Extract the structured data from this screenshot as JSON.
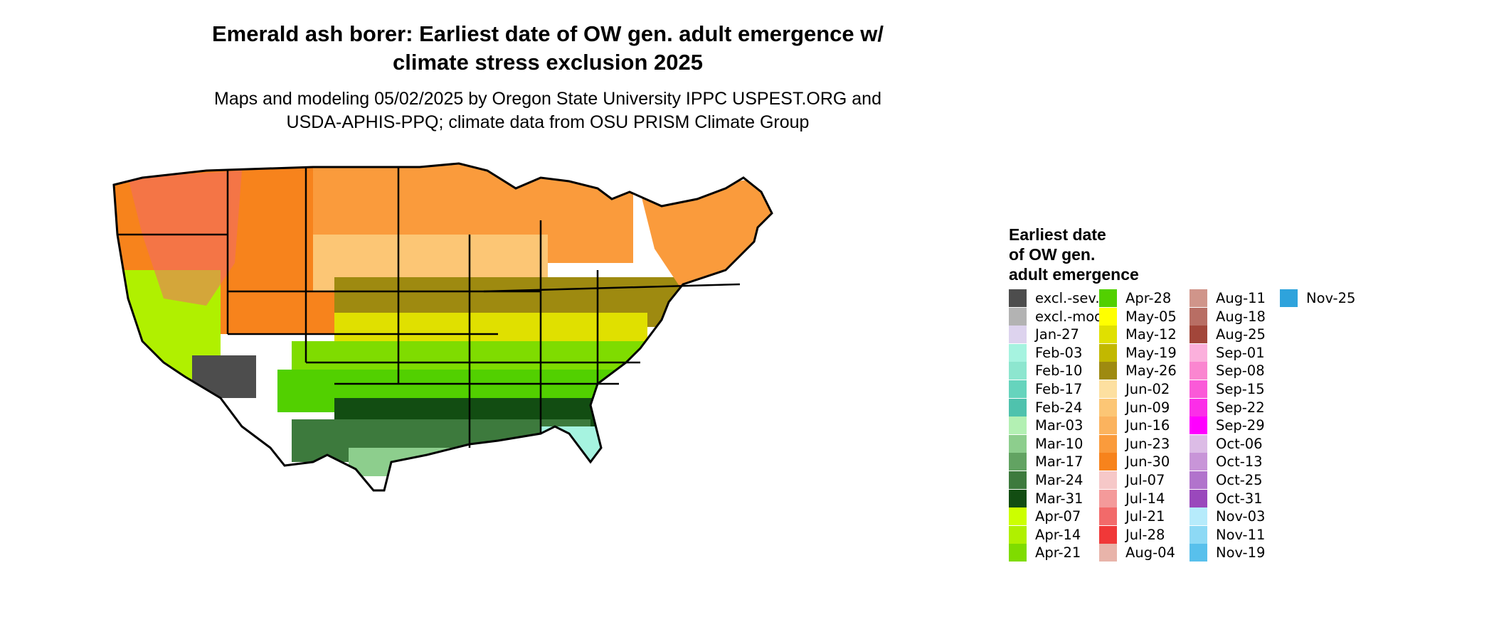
{
  "title": {
    "line1": "Emerald ash borer: Earliest date of OW gen. adult emergence w/",
    "line2": "climate stress exclusion 2025"
  },
  "subtitle": {
    "line1": "Maps and modeling 05/02/2025 by Oregon State University IPPC USPEST.ORG and",
    "line2": "USDA-APHIS-PPQ; climate data from OSU PRISM Climate Group"
  },
  "legend": {
    "title_line1": "Earliest date",
    "title_line2": "of OW gen.",
    "title_line3": "adult emergence",
    "items": [
      {
        "label": "excl.-sev.",
        "color": "#4d4d4d"
      },
      {
        "label": "excl.-mod.",
        "color": "#b3b3b3"
      },
      {
        "label": "Jan-27",
        "color": "#ddd3ee"
      },
      {
        "label": "Feb-03",
        "color": "#a6f3e0"
      },
      {
        "label": "Feb-10",
        "color": "#8de6cf"
      },
      {
        "label": "Feb-17",
        "color": "#66d4bd"
      },
      {
        "label": "Feb-24",
        "color": "#4fc2ad"
      },
      {
        "label": "Mar-03",
        "color": "#b3f0b3"
      },
      {
        "label": "Mar-10",
        "color": "#8dce8d"
      },
      {
        "label": "Mar-17",
        "color": "#62a362"
      },
      {
        "label": "Mar-24",
        "color": "#3d7a3d"
      },
      {
        "label": "Mar-31",
        "color": "#124d12"
      },
      {
        "label": "Apr-07",
        "color": "#ccff00"
      },
      {
        "label": "Apr-14",
        "color": "#b0f000"
      },
      {
        "label": "Apr-21",
        "color": "#7fdc00"
      },
      {
        "label": "Apr-28",
        "color": "#52d000"
      },
      {
        "label": "May-05",
        "color": "#ffff00"
      },
      {
        "label": "May-12",
        "color": "#e0e000"
      },
      {
        "label": "May-19",
        "color": "#c2b800"
      },
      {
        "label": "May-26",
        "color": "#9e8a10"
      },
      {
        "label": "Jun-02",
        "color": "#fde0a0"
      },
      {
        "label": "Jun-09",
        "color": "#fcc675"
      },
      {
        "label": "Jun-16",
        "color": "#fbb35e"
      },
      {
        "label": "Jun-23",
        "color": "#fa9b3c"
      },
      {
        "label": "Jun-30",
        "color": "#f7831c"
      },
      {
        "label": "Jul-07",
        "color": "#f6c8c8"
      },
      {
        "label": "Jul-14",
        "color": "#f49a9a"
      },
      {
        "label": "Jul-21",
        "color": "#f26a6a"
      },
      {
        "label": "Jul-28",
        "color": "#f03838"
      },
      {
        "label": "Aug-04",
        "color": "#e8b4aa"
      },
      {
        "label": "Aug-11",
        "color": "#d0958a"
      },
      {
        "label": "Aug-18",
        "color": "#b86e64"
      },
      {
        "label": "Aug-25",
        "color": "#a2463a"
      },
      {
        "label": "Sep-01",
        "color": "#fbb0dc"
      },
      {
        "label": "Sep-08",
        "color": "#fa86d0"
      },
      {
        "label": "Sep-15",
        "color": "#fa5ad8"
      },
      {
        "label": "Sep-22",
        "color": "#fb2ee8"
      },
      {
        "label": "Sep-29",
        "color": "#ff00ff"
      },
      {
        "label": "Oct-06",
        "color": "#dcbce6"
      },
      {
        "label": "Oct-13",
        "color": "#c895d8"
      },
      {
        "label": "Oct-25",
        "color": "#b173cc"
      },
      {
        "label": "Oct-31",
        "color": "#9a48bc"
      },
      {
        "label": "Nov-03",
        "color": "#b6ebfb"
      },
      {
        "label": "Nov-11",
        "color": "#8dd9f5"
      },
      {
        "label": "Nov-19",
        "color": "#58c0ec"
      },
      {
        "label": "Nov-25",
        "color": "#2ea3dc"
      }
    ]
  },
  "map_colors": {
    "north_west": "#f7831c",
    "north_plains": "#fa9b3c",
    "high_mountains": "#f26a6a",
    "central_plains": "#fcc675",
    "ohio_valley": "#9e8a10",
    "mid_band": "#e0e000",
    "lower_mid": "#7fdc00",
    "south_band": "#52d000",
    "deep_south": "#124d12",
    "gulf_coast": "#3d7a3d",
    "gulf_shore": "#8dce8d",
    "florida": "#a6f3e0",
    "desert": "#4d4d4d",
    "california": "#b0f000",
    "state_lines": "#000000"
  }
}
